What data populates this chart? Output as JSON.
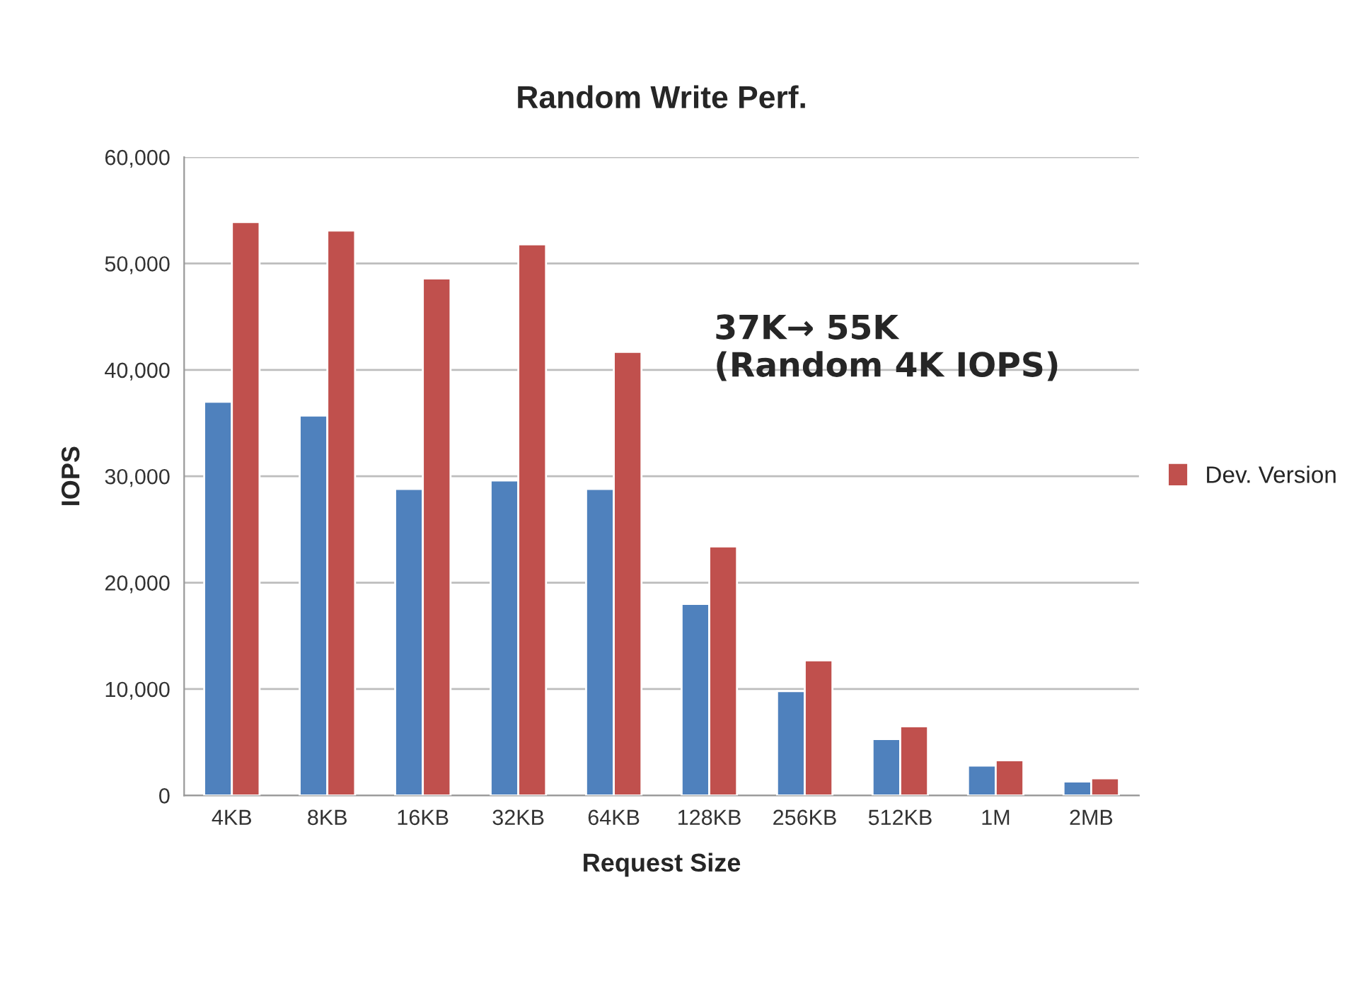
{
  "chart_data": {
    "type": "bar",
    "title": "Random Write Perf.",
    "xlabel": "Request Size",
    "ylabel": "IOPS",
    "categories": [
      "4KB",
      "8KB",
      "16KB",
      "32KB",
      "64KB",
      "128KB",
      "256KB",
      "512KB",
      "1M",
      "2MB"
    ],
    "series": [
      {
        "color": "#4f81bd",
        "values": [
          37000,
          35700,
          28800,
          29600,
          28800,
          18000,
          9800,
          5300,
          2800,
          1300
        ]
      },
      {
        "name": "Dev. Version",
        "color": "#c0504d",
        "values": [
          53900,
          53100,
          48600,
          51800,
          41700,
          23400,
          12700,
          6500,
          3300,
          1600
        ]
      }
    ],
    "ylim": [
      0,
      60000
    ],
    "yticks": [
      {
        "value": 0,
        "label": "0"
      },
      {
        "value": 10000,
        "label": "10,000"
      },
      {
        "value": 20000,
        "label": "20,000"
      },
      {
        "value": 30000,
        "label": "30,000"
      },
      {
        "value": 40000,
        "label": "40,000"
      },
      {
        "value": 50000,
        "label": "50,000"
      },
      {
        "value": 60000,
        "label": "60,000"
      }
    ],
    "grid": "y",
    "legend": "right",
    "annotations": [
      "37K→ 55K\n(Random 4K IOPS)"
    ]
  }
}
